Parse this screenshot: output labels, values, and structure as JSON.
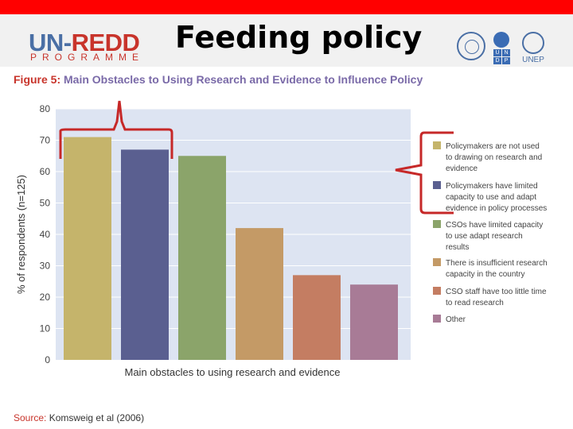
{
  "header": {
    "logo_part1": "UN-",
    "logo_part2": "REDD",
    "logo_sub": "PROGRAMME",
    "title": "Feeding policy",
    "partners": [
      "FAO",
      "UNDP",
      "UNEP"
    ],
    "undp_letters": [
      "U",
      "N",
      "D",
      "P"
    ],
    "unep_label": "UNEP"
  },
  "figure": {
    "label": "Figure 5:",
    "title": "Main Obstacles to Using Research and Evidence to Influence Policy"
  },
  "source": {
    "label": "Source:",
    "text": "Komsweig et al (2006)"
  },
  "colors": {
    "accent_red": "#ff0000",
    "annotation_red": "#c62828",
    "plot_bg": "#dde4f2"
  },
  "chart_data": {
    "type": "bar",
    "title": "Main Obstacles to Using Research and Evidence to Influence Policy",
    "xlabel": "Main obstacles to using research and evidence",
    "ylabel": "% of respondents (n=125)",
    "ylim": [
      0,
      80
    ],
    "yticks": [
      0,
      10,
      20,
      30,
      40,
      50,
      60,
      70,
      80
    ],
    "grid": true,
    "legend_position": "right",
    "categories": [
      "Policymakers are not used to drawing on research and evidence",
      "Policymakers have limited capacity to use and adapt evidence in policy processes",
      "CSOs have limited capacity to use adapt research results",
      "There is insufficient research capacity in the country",
      "CSO staff have too little time to read research",
      "Other"
    ],
    "values": [
      71,
      67,
      65,
      42,
      27,
      24
    ],
    "colors": [
      "#c5b46b",
      "#5a5f90",
      "#8ba46a",
      "#c49a66",
      "#c47d62",
      "#a87b96"
    ],
    "legend": [
      [
        "Policymakers are not used",
        "to drawing on research and",
        "evidence"
      ],
      [
        "Policymakers have limited",
        "capacity to use and adapt",
        "evidence in policy processes"
      ],
      [
        "CSOs have limited capacity",
        "to use adapt research",
        "results"
      ],
      [
        "There is insufficient research",
        "capacity in the country"
      ],
      [
        "CSO staff have too little time",
        "to read research"
      ],
      [
        "Other"
      ]
    ]
  }
}
